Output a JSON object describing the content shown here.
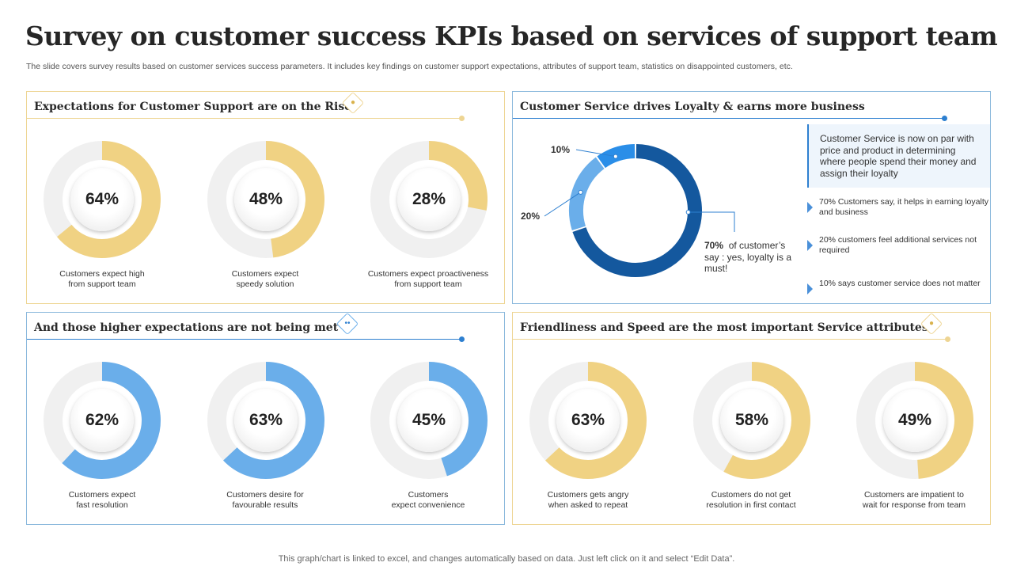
{
  "title": "Survey on customer success KPIs based on services of support team",
  "subtitle": "The slide covers survey results based on customer services success parameters. It includes key findings on customer support expectations, attributes of support team, statistics on disappointed customers, etc.",
  "colors": {
    "yellow": "#f0d283",
    "blue": "#6aaeea",
    "track": "#f0f0f0",
    "dark_blue": "#14589e",
    "mid_blue": "#6aaeea",
    "bright_blue": "#2a8ee8"
  },
  "panels": {
    "expectations": {
      "title": "Expectations for Customer Support are on the Rise",
      "icon": "support-agent-icon"
    },
    "loyalty": {
      "title": "Customer Service drives Loyalty & earns more business"
    },
    "not_met": {
      "title": "And those higher expectations are not being met",
      "icon": "people-network-icon"
    },
    "attributes": {
      "title": "Friendliness and Speed are the most important Service attributes",
      "icon": "speech-bubble-icon"
    }
  },
  "loyalty": {
    "label_10": "10%",
    "label_20": "20%",
    "label_70_pct": "70%",
    "label_70_text": "of customer’s say : yes, loyalty is a must!",
    "note": "Customer Service is now on par with price and product in determining where people spend their money and assign their loyalty",
    "bullets": [
      "70% Customers say, it helps in earning loyalty and business",
      "20% customers feel additional services not required",
      "10% says customer service does not matter"
    ]
  },
  "chart_data": [
    {
      "type": "pie",
      "panel": "Expectations for Customer Support are on the Rise",
      "series": [
        {
          "name": "Customers expect high from support team",
          "label": "64%",
          "value": 64
        },
        {
          "name": "Customers expect speedy solution",
          "label": "48%",
          "value": 48
        },
        {
          "name": "Customers expect proactiveness from support team",
          "label": "28%",
          "value": 28
        }
      ]
    },
    {
      "type": "pie",
      "panel": "Customer Service drives Loyalty & earns more business",
      "categories": [
        "70%",
        "20%",
        "10%"
      ],
      "values": [
        70,
        20,
        10
      ]
    },
    {
      "type": "pie",
      "panel": "And those higher expectations are not being met",
      "series": [
        {
          "name": "Customers expect fast resolution",
          "label": "62%",
          "value": 62
        },
        {
          "name": "Customers desire for favourable results",
          "label": "63%",
          "value": 63
        },
        {
          "name": "Customers expect convenience",
          "label": "45%",
          "value": 45
        }
      ]
    },
    {
      "type": "pie",
      "panel": "Friendliness and Speed are the most important Service attributes",
      "series": [
        {
          "name": "Customers gets angry when asked to repeat",
          "label": "63%",
          "value": 63
        },
        {
          "name": "Customers do not get resolution in first contact",
          "label": "58%",
          "value": 58
        },
        {
          "name": "Customers are impatient to wait for response from team",
          "label": "49%",
          "value": 49
        }
      ]
    }
  ],
  "captions": {
    "exp": [
      [
        "Customers expect high",
        "from support team"
      ],
      [
        "Customers expect",
        "speedy solution"
      ],
      [
        "Customers expect proactiveness",
        "from support team"
      ]
    ],
    "not_met": [
      [
        "Customers expect",
        "fast resolution"
      ],
      [
        "Customers desire for",
        "favourable results"
      ],
      [
        "Customers",
        "expect convenience"
      ]
    ],
    "attr": [
      [
        "Customers gets angry",
        "when asked to repeat"
      ],
      [
        "Customers do not get",
        "resolution in  first contact"
      ],
      [
        "Customers are impatient  to",
        "wait for response from team"
      ]
    ]
  },
  "footer": "This graph/chart is linked to excel,  and changes automatically based on data. Just left click on it and select “Edit Data”."
}
